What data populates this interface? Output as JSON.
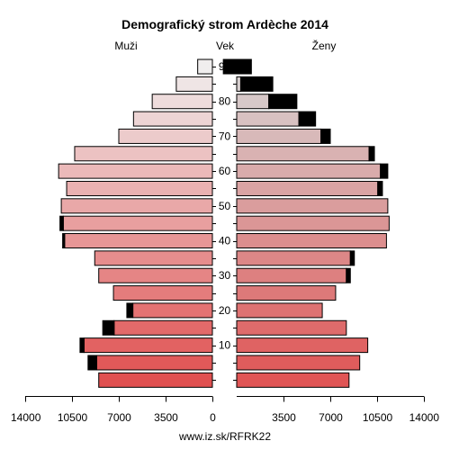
{
  "chart_data": {
    "type": "bar",
    "title": "Demografický strom Ardèche 2014",
    "label_left": "Muži",
    "label_center": "Vek",
    "label_right": "Ženy",
    "footer": "www.iz.sk/RFRK22",
    "age_groups": [
      "0-4",
      "5-9",
      "10-14",
      "15-19",
      "20-24",
      "25-29",
      "30-34",
      "35-39",
      "40-44",
      "45-49",
      "50-54",
      "55-59",
      "60-64",
      "65-69",
      "70-74",
      "75-79",
      "80-84",
      "85-89",
      "90+"
    ],
    "age_tick_labels": [
      "10",
      "20",
      "30",
      "40",
      "50",
      "60",
      "70",
      "80",
      "90"
    ],
    "value_ticks": [
      "14000",
      "10500",
      "7000",
      "3500",
      "0",
      "3500",
      "7000",
      "10500",
      "14000"
    ],
    "xlim": [
      0,
      14000
    ],
    "series": [
      {
        "name": "Muži",
        "values": [
          8500,
          9300,
          9900,
          8200,
          6400,
          7400,
          8500,
          8800,
          11200,
          11400,
          11300,
          10900,
          11500,
          10300,
          7000,
          5900,
          4500,
          2700,
          1100
        ],
        "excess": [
          0,
          650,
          300,
          850,
          450,
          0,
          0,
          0,
          150,
          250,
          0,
          0,
          0,
          0,
          0,
          0,
          0,
          0,
          0
        ]
      },
      {
        "name": "Ženy",
        "values": [
          8400,
          9200,
          9800,
          8200,
          6400,
          7400,
          8500,
          8800,
          11200,
          11400,
          11300,
          10900,
          11300,
          10300,
          7000,
          5900,
          4500,
          2700,
          1100
        ],
        "excess": [
          0,
          0,
          0,
          0,
          0,
          0,
          300,
          300,
          0,
          0,
          0,
          350,
          550,
          400,
          700,
          1250,
          2100,
          2400,
          2100
        ]
      }
    ]
  }
}
